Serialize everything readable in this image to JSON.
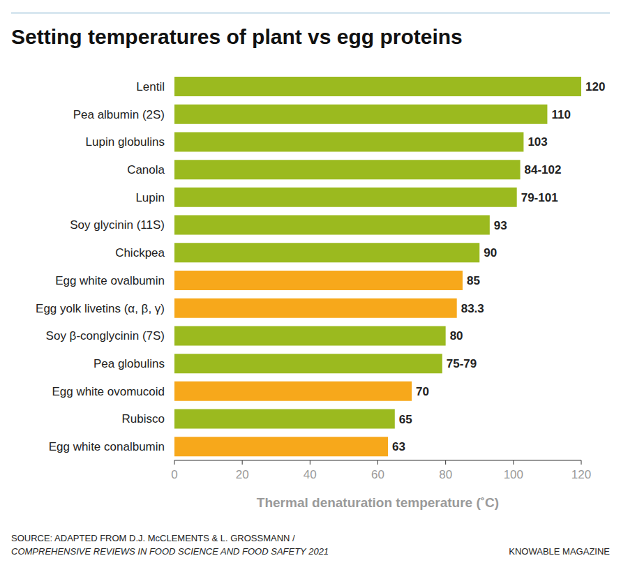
{
  "chart_data": {
    "type": "bar",
    "title": "Setting temperatures of plant vs egg proteins",
    "orientation": "horizontal",
    "categories": [
      "Lentil",
      "Pea albumin (2S)",
      "Lupin globulins",
      "Canola",
      "Lupin",
      "Soy glycinin (11S)",
      "Chickpea",
      "Egg white ovalbumin",
      "Egg yolk livetins (α, β, γ)",
      "Soy β-conglycinin (7S)",
      "Pea globulins",
      "Egg white ovomucoid",
      "Rubisco",
      "Egg white conalbumin"
    ],
    "values": [
      120,
      110,
      103,
      102,
      101,
      93,
      90,
      85,
      83.3,
      80,
      79,
      70,
      65,
      63
    ],
    "value_labels": [
      "120",
      "110",
      "103",
      "84-102",
      "79-101",
      "93",
      "90",
      "85",
      "83.3",
      "80",
      "75-79",
      "70",
      "65",
      "63"
    ],
    "colors": [
      "#9bba1f",
      "#9bba1f",
      "#9bba1f",
      "#9bba1f",
      "#9bba1f",
      "#9bba1f",
      "#9bba1f",
      "#f7a81b",
      "#f7a81b",
      "#9bba1f",
      "#9bba1f",
      "#f7a81b",
      "#9bba1f",
      "#f7a81b"
    ],
    "xlabel": "Thermal denaturation temperature (˚C)",
    "xlim": [
      0,
      120
    ],
    "xticks": [
      0,
      20,
      40,
      60,
      80,
      100,
      120
    ],
    "grid": false,
    "data_labels": true,
    "source": [
      "SOURCE: ADAPTED FROM D.J. McCLEMENTS & L. GROSSMANN /",
      "COMPREHENSIVE REVIEWS IN FOOD SCIENCE AND FOOD SAFETY 2021"
    ],
    "credit": "KNOWABLE MAGAZINE"
  }
}
